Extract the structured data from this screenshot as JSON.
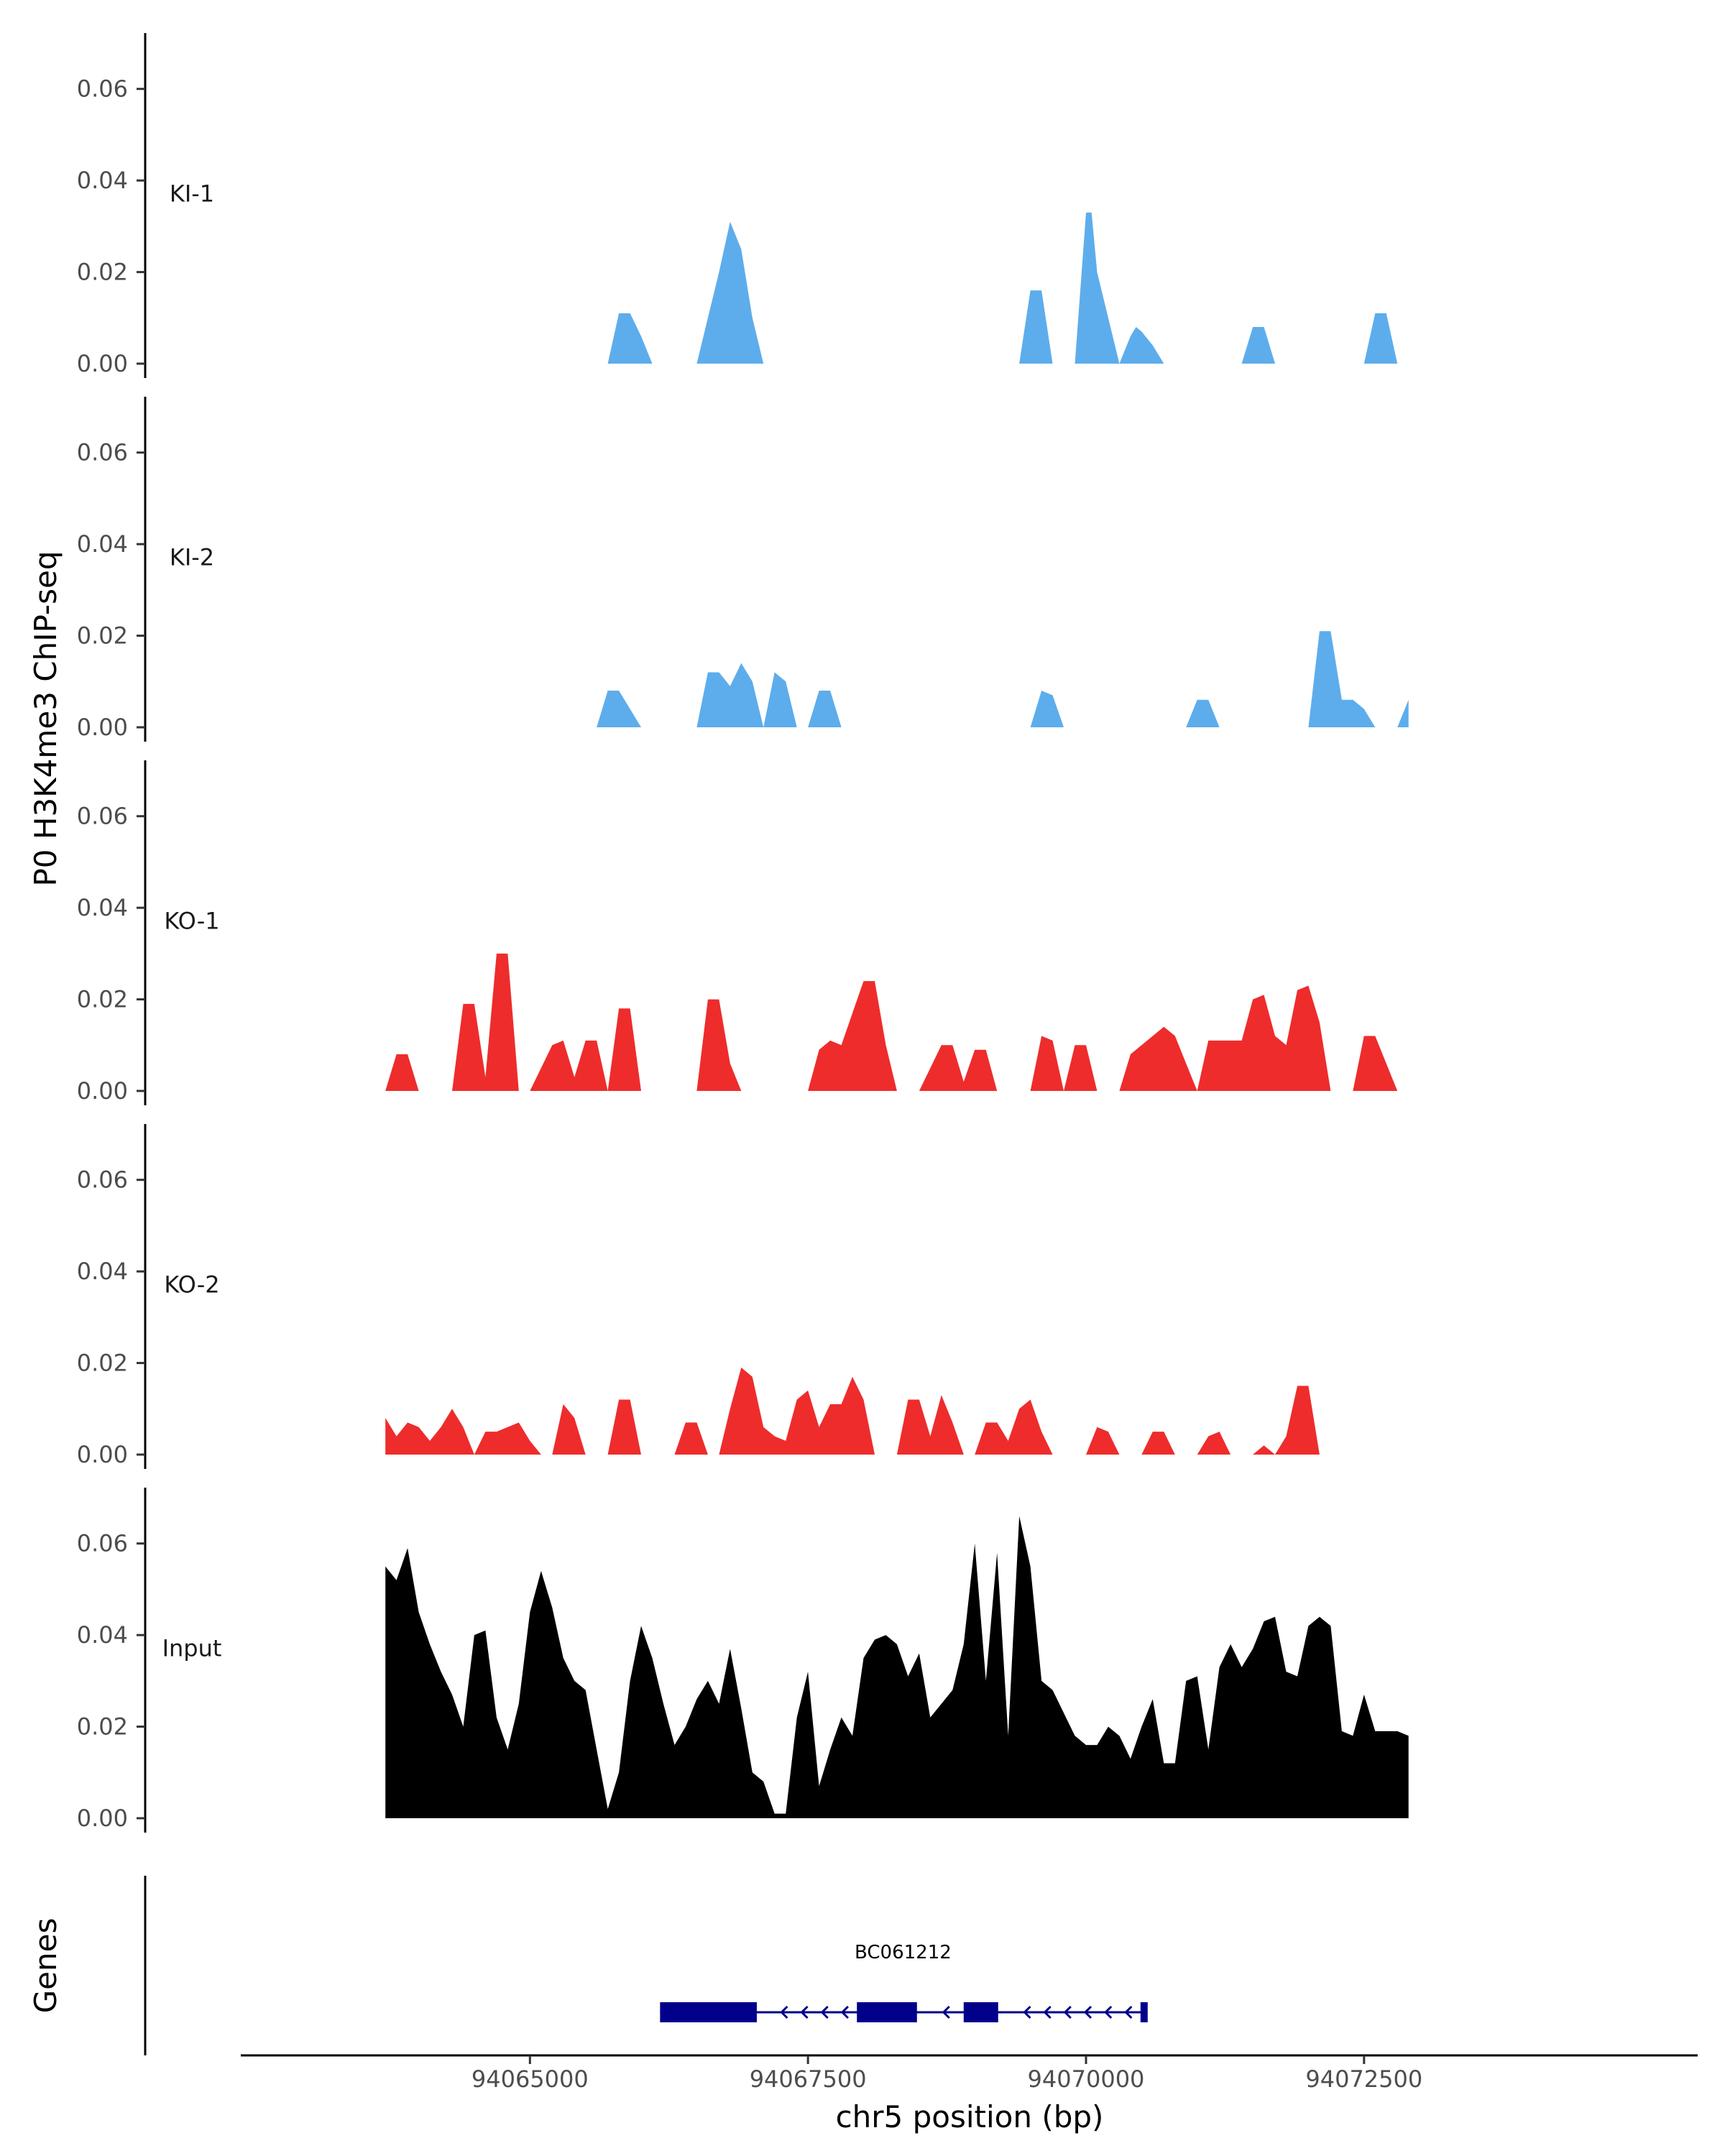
{
  "chart_data": {
    "type": "area",
    "ylabel": "P0 H3K4me3 ChIP-seq",
    "xlabel": "chr5 position (bp)",
    "xlim": [
      94062400,
      94075500
    ],
    "ylim": [
      0,
      0.07
    ],
    "yticks": [
      0,
      0.02,
      0.04,
      0.06
    ],
    "ytick_labels": [
      "0.00",
      "0.02",
      "0.04",
      "0.06"
    ],
    "xticks": [
      94065000,
      94067500,
      94070000,
      94072500
    ],
    "xtick_labels": [
      "94065000",
      "94067500",
      "94070000",
      "94072500"
    ],
    "colors": {
      "KI": "#5DADEC",
      "KO": "#EE2C2C",
      "Input": "#000000",
      "gene": "#00008B",
      "axis": "#000000"
    },
    "tracks": [
      {
        "name": "KI-1",
        "color": "#5DADEC",
        "x": [
          94065700,
          94065800,
          94065900,
          94066000,
          94066100,
          94066500,
          94066600,
          94066700,
          94066800,
          94066900,
          94067000,
          94067050,
          94067100,
          94069900,
          94070000,
          94070020,
          94070050,
          94070100,
          94070300,
          94070400,
          94070450,
          94070500,
          94070600,
          94070700,
          94070750,
          94070800,
          94070850,
          94071400,
          94071500,
          94071600,
          94071700,
          94072500,
          94072600,
          94072700,
          94072800,
          94069400,
          94069500,
          94069600,
          94069700
        ],
        "y": [
          0,
          0.011,
          0.011,
          0.006,
          0,
          0,
          0.01,
          0.02,
          0.031,
          0.025,
          0.01,
          0.005,
          0,
          0,
          0.033,
          0.033,
          0.033,
          0.02,
          0,
          0.006,
          0.008,
          0.007,
          0.004,
          0,
          0,
          0,
          0,
          0,
          0.008,
          0.008,
          0,
          0,
          0.011,
          0.011,
          0,
          0,
          0.016,
          0.016,
          0
        ]
      },
      {
        "name": "KI-2",
        "color": "#5DADEC",
        "x": [
          94065600,
          94065700,
          94065800,
          94065900,
          94066000,
          94066500,
          94066600,
          94066700,
          94066800,
          94066900,
          94067000,
          94067100,
          94067200,
          94067300,
          94067400,
          94067500,
          94067600,
          94067700,
          94067800,
          94067900,
          94068000,
          94069500,
          94069600,
          94069700,
          94069800,
          94070900,
          94071000,
          94071100,
          94071200,
          94072000,
          94072100,
          94072200,
          94072300,
          94072400,
          94072500,
          94072600,
          94072800,
          94072900
        ],
        "y": [
          0,
          0.008,
          0.008,
          0.004,
          0,
          0,
          0.012,
          0.012,
          0.009,
          0.014,
          0.01,
          0,
          0.012,
          0.01,
          0,
          0,
          0.008,
          0.008,
          0,
          0,
          0,
          0,
          0.008,
          0.007,
          0,
          0,
          0.006,
          0.006,
          0,
          0,
          0.021,
          0.021,
          0.006,
          0.006,
          0.004,
          0,
          0,
          0.006
        ]
      },
      {
        "name": "KO-1",
        "color": "#EE2C2C",
        "x": [
          94063700,
          94063800,
          94063900,
          94064000,
          94064300,
          94064400,
          94064500,
          94064600,
          94064700,
          94064800,
          94064900,
          94065000,
          94065200,
          94065300,
          94065400,
          94065500,
          94065600,
          94065700,
          94065800,
          94065900,
          94066000,
          94066100,
          94066500,
          94066600,
          94066700,
          94066800,
          94066900,
          94067000,
          94067500,
          94067600,
          94067700,
          94067800,
          94067900,
          94068000,
          94068100,
          94068200,
          94068300,
          94068400,
          94068500,
          94068700,
          94068800,
          94068900,
          94069000,
          94069100,
          94069200,
          94069300,
          94069400,
          94069500,
          94069600,
          94069700,
          94069800,
          94069900,
          94070000,
          94070100,
          94070200,
          94070300,
          94070400,
          94070500,
          94070600,
          94070700,
          94070800,
          94070900,
          94071000,
          94071100,
          94071200,
          94071300,
          94071400,
          94071500,
          94071600,
          94071700,
          94071800,
          94071900,
          94072000,
          94072100,
          94072200,
          94072300,
          94072400,
          94072500,
          94072600,
          94072700,
          94072800,
          94072900
        ],
        "y": [
          0,
          0.008,
          0.008,
          0,
          0,
          0.019,
          0.019,
          0.003,
          0.03,
          0.03,
          0,
          0,
          0.01,
          0.011,
          0.003,
          0.011,
          0.011,
          0,
          0.018,
          0.018,
          0,
          0,
          0,
          0.02,
          0.02,
          0.006,
          0,
          0,
          0,
          0.009,
          0.011,
          0.01,
          0.017,
          0.024,
          0.024,
          0.01,
          0,
          0,
          0,
          0.01,
          0.01,
          0.002,
          0.009,
          0.009,
          0,
          0,
          0,
          0,
          0.012,
          0.011,
          0,
          0.01,
          0.01,
          0,
          0,
          0,
          0.008,
          0.01,
          0.012,
          0.014,
          0.012,
          0.006,
          0,
          0.011,
          0.011,
          0.011,
          0.011,
          0.02,
          0.021,
          0.012,
          0.01,
          0.022,
          0.023,
          0.015,
          0,
          0,
          0,
          0.012,
          0.012,
          0.006,
          0,
          0
        ]
      },
      {
        "name": "KO-2",
        "color": "#EE2C2C",
        "x": [
          94063700,
          94063800,
          94063900,
          94064000,
          94064100,
          94064200,
          94064300,
          94064400,
          94064500,
          94064600,
          94064700,
          94064800,
          94064900,
          94065000,
          94065100,
          94065200,
          94065300,
          94065400,
          94065500,
          94065600,
          94065700,
          94065800,
          94065900,
          94066000,
          94066100,
          94066200,
          94066300,
          94066400,
          94066500,
          94066600,
          94066700,
          94066800,
          94066900,
          94067000,
          94067100,
          94067200,
          94067300,
          94067400,
          94067500,
          94067600,
          94067700,
          94067800,
          94067900,
          94068000,
          94068100,
          94068200,
          94068300,
          94068400,
          94068500,
          94068600,
          94068700,
          94068800,
          94068900,
          94069000,
          94069100,
          94069200,
          94069300,
          94069400,
          94069500,
          94069600,
          94069700,
          94069800,
          94069900,
          94070000,
          94070100,
          94070200,
          94070300,
          94070400,
          94070500,
          94070600,
          94070700,
          94070800,
          94070900,
          94071000,
          94071100,
          94071200,
          94071300,
          94071400,
          94071500,
          94071600,
          94071700,
          94071800,
          94071900,
          94072000,
          94072100,
          94072200,
          94072300,
          94072400,
          94072500,
          94072600,
          94072700,
          94072800,
          94072900
        ],
        "y": [
          0.008,
          0.004,
          0.007,
          0.006,
          0.003,
          0.006,
          0.01,
          0.006,
          0,
          0.005,
          0.005,
          0.006,
          0.007,
          0.003,
          0,
          0,
          0.011,
          0.008,
          0,
          0,
          0,
          0.012,
          0.012,
          0,
          0,
          0,
          0,
          0.007,
          0.007,
          0,
          0,
          0.01,
          0.019,
          0.017,
          0.006,
          0.004,
          0.003,
          0.012,
          0.014,
          0.006,
          0.011,
          0.011,
          0.017,
          0.012,
          0,
          0,
          0,
          0.012,
          0.012,
          0.004,
          0.013,
          0.007,
          0,
          0,
          0.007,
          0.007,
          0.003,
          0.01,
          0.012,
          0.005,
          0,
          0,
          0,
          0,
          0.006,
          0.005,
          0,
          0,
          0,
          0.005,
          0.005,
          0,
          0,
          0,
          0.004,
          0.005,
          0,
          0,
          0,
          0.002,
          0,
          0.004,
          0.015,
          0.015,
          0,
          0,
          0,
          0,
          0,
          0,
          0,
          0,
          0
        ]
      },
      {
        "name": "Input",
        "color": "#000000",
        "x": [
          94063700,
          94063800,
          94063900,
          94064000,
          94064100,
          94064200,
          94064300,
          94064400,
          94064500,
          94064600,
          94064700,
          94064800,
          94064900,
          94065000,
          94065100,
          94065200,
          94065300,
          94065400,
          94065500,
          94065600,
          94065700,
          94065800,
          94065900,
          94066000,
          94066100,
          94066200,
          94066300,
          94066400,
          94066500,
          94066600,
          94066700,
          94066800,
          94066900,
          94067000,
          94067100,
          94067200,
          94067300,
          94067400,
          94067500,
          94067600,
          94067700,
          94067800,
          94067900,
          94068000,
          94068100,
          94068200,
          94068300,
          94068400,
          94068500,
          94068600,
          94068700,
          94068800,
          94068900,
          94069000,
          94069100,
          94069200,
          94069300,
          94069400,
          94069500,
          94069600,
          94069700,
          94069800,
          94069900,
          94070000,
          94070100,
          94070200,
          94070300,
          94070400,
          94070500,
          94070600,
          94070700,
          94070800,
          94070900,
          94071000,
          94071100,
          94071200,
          94071300,
          94071400,
          94071500,
          94071600,
          94071700,
          94071800,
          94071900,
          94072000,
          94072100,
          94072200,
          94072300,
          94072400,
          94072500,
          94072600,
          94072700,
          94072800,
          94072900
        ],
        "y": [
          0.055,
          0.052,
          0.059,
          0.045,
          0.038,
          0.032,
          0.027,
          0.02,
          0.04,
          0.041,
          0.022,
          0.015,
          0.025,
          0.045,
          0.054,
          0.046,
          0.035,
          0.03,
          0.028,
          0.015,
          0.002,
          0.01,
          0.03,
          0.042,
          0.035,
          0.025,
          0.016,
          0.02,
          0.026,
          0.03,
          0.025,
          0.037,
          0.024,
          0.01,
          0.008,
          0.001,
          0.001,
          0.022,
          0.032,
          0.007,
          0.015,
          0.022,
          0.018,
          0.035,
          0.039,
          0.04,
          0.038,
          0.031,
          0.036,
          0.022,
          0.025,
          0.028,
          0.038,
          0.06,
          0.03,
          0.058,
          0.018,
          0.066,
          0.055,
          0.03,
          0.028,
          0.023,
          0.018,
          0.016,
          0.016,
          0.02,
          0.018,
          0.013,
          0.02,
          0.026,
          0.012,
          0.012,
          0.03,
          0.031,
          0.015,
          0.033,
          0.038,
          0.033,
          0.037,
          0.043,
          0.044,
          0.032,
          0.031,
          0.042,
          0.044,
          0.042,
          0.019,
          0.018,
          0.027,
          0.019,
          0.019,
          0.019,
          0.018
        ]
      }
    ],
    "gene_track": {
      "title": "Genes",
      "gene_name": "BC061212",
      "strand": "-",
      "start": 94066170,
      "end": 94070540,
      "exons": [
        [
          94066170,
          94067040
        ],
        [
          94067940,
          94068480
        ],
        [
          94068900,
          94069210
        ],
        [
          94070490,
          94070540
        ]
      ]
    }
  }
}
